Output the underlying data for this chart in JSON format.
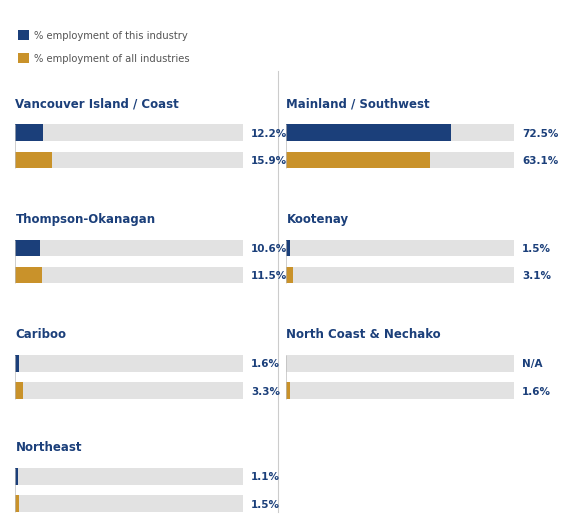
{
  "regions": [
    {
      "name": "Vancouver Island / Coast",
      "industry_pct": 12.2,
      "all_pct": 15.9,
      "industry_label": "12.2%",
      "all_label": "15.9%",
      "col": 0,
      "row": 0
    },
    {
      "name": "Mainland / Southwest",
      "industry_pct": 72.5,
      "all_pct": 63.1,
      "industry_label": "72.5%",
      "all_label": "63.1%",
      "col": 1,
      "row": 0
    },
    {
      "name": "Thompson-Okanagan",
      "industry_pct": 10.6,
      "all_pct": 11.5,
      "industry_label": "10.6%",
      "all_label": "11.5%",
      "col": 0,
      "row": 1
    },
    {
      "name": "Kootenay",
      "industry_pct": 1.5,
      "all_pct": 3.1,
      "industry_label": "1.5%",
      "all_label": "3.1%",
      "col": 1,
      "row": 1
    },
    {
      "name": "Cariboo",
      "industry_pct": 1.6,
      "all_pct": 3.3,
      "industry_label": "1.6%",
      "all_label": "3.3%",
      "col": 0,
      "row": 2
    },
    {
      "name": "North Coast & Nechako",
      "industry_pct": null,
      "all_pct": 1.6,
      "industry_label": "N/A",
      "all_label": "1.6%",
      "col": 1,
      "row": 2
    },
    {
      "name": "Northeast",
      "industry_pct": 1.1,
      "all_pct": 1.5,
      "industry_label": "1.1%",
      "all_label": "1.5%",
      "col": 0,
      "row": 3
    }
  ],
  "max_value": 100,
  "bar_color_industry": "#1b3f7a",
  "bar_color_all": "#c9922a",
  "bar_bg_color": "#e2e2e2",
  "title_color": "#1b3f7a",
  "label_color": "#1b3f7a",
  "legend_label_industry": "% employment of this industry",
  "legend_label_all": "% employment of all industries",
  "background_color": "#ffffff",
  "legend_text_color": "#555555"
}
